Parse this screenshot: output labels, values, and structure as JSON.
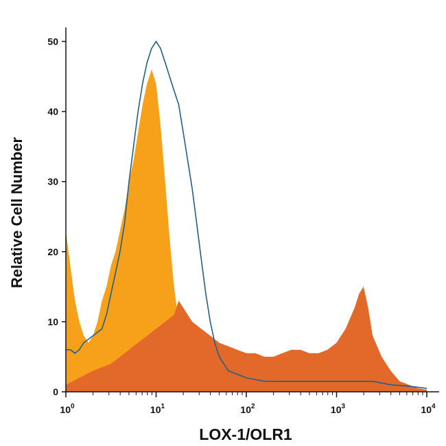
{
  "chart_data": {
    "type": "area",
    "title": "",
    "xlabel": "LOX-1/OLR1",
    "ylabel": "Relative Cell Number",
    "x_scale": "log10",
    "xlim": [
      1,
      10000
    ],
    "ylim": [
      0,
      52
    ],
    "grid": false,
    "legend": "none",
    "x_ticks": [
      {
        "value": 1,
        "base": "10",
        "exp": "0"
      },
      {
        "value": 10,
        "base": "10",
        "exp": "1"
      },
      {
        "value": 100,
        "base": "10",
        "exp": "2"
      },
      {
        "value": 1000,
        "base": "10",
        "exp": "3"
      },
      {
        "value": 10000,
        "base": "10",
        "exp": "4"
      }
    ],
    "y_ticks": [
      "0",
      "10",
      "20",
      "30",
      "40",
      "50"
    ],
    "series": [
      {
        "style": "filled",
        "color": "#f7a11a",
        "x": [
          1.0,
          1.12,
          1.26,
          1.41,
          1.58,
          1.78,
          2.0,
          2.24,
          2.51,
          2.82,
          3.16,
          3.55,
          3.98,
          4.47,
          5.01,
          5.62,
          6.31,
          7.08,
          7.94,
          8.91,
          10.0,
          11.2,
          12.6,
          14.1,
          15.8,
          17.8,
          20.0,
          22.4,
          25.1,
          28.2,
          31.6,
          35.5,
          39.8,
          50.1,
          63.1,
          100
        ],
        "y": [
          23,
          18,
          13,
          10,
          8,
          7,
          8,
          10,
          13,
          15,
          18,
          20,
          23,
          26,
          30,
          33,
          37,
          41,
          44,
          46,
          44,
          38,
          30,
          22,
          15,
          10,
          7,
          5,
          4,
          3,
          2,
          1.5,
          1,
          0.6,
          0.3,
          0
        ]
      },
      {
        "style": "filled",
        "color": "#e3692a",
        "x": [
          1.0,
          1.41,
          2.0,
          3.16,
          5.01,
          7.94,
          10.0,
          12.6,
          15.8,
          17.8,
          20.0,
          25.1,
          31.6,
          39.8,
          50.1,
          63.1,
          79.4,
          100,
          126,
          158,
          200,
          251,
          316,
          398,
          501,
          631,
          794,
          1000,
          1259,
          1585,
          1778,
          1995,
          2239,
          2512,
          3162,
          3981,
          5012,
          6310,
          7943,
          10000
        ],
        "y": [
          1,
          2,
          3,
          4,
          6,
          8,
          9,
          10,
          11,
          13,
          12,
          10,
          9,
          8,
          7,
          6.5,
          6,
          5.5,
          5.5,
          5,
          5,
          5.5,
          6,
          6,
          5.5,
          5.5,
          6,
          7,
          9,
          12,
          14,
          15,
          12,
          8,
          5,
          3,
          1.5,
          1,
          0.5,
          0.3
        ]
      },
      {
        "style": "outline",
        "color": "#1f5f8b",
        "x": [
          1.0,
          1.12,
          1.26,
          1.41,
          1.58,
          1.78,
          2.0,
          2.24,
          2.51,
          2.82,
          3.16,
          3.55,
          3.98,
          4.47,
          5.01,
          5.62,
          6.31,
          7.08,
          7.94,
          8.91,
          10.0,
          11.2,
          12.6,
          14.1,
          15.8,
          17.8,
          20.0,
          22.4,
          25.1,
          28.2,
          31.6,
          35.5,
          39.8,
          44.7,
          50.1,
          63.1,
          79.4,
          100,
          158,
          251,
          398,
          631,
          1000,
          1585,
          2512,
          3981,
          6310,
          10000
        ],
        "y": [
          6,
          6,
          5.5,
          6,
          7,
          7.5,
          8,
          8.5,
          9,
          11,
          14,
          17,
          20,
          24,
          30,
          35,
          40,
          44,
          47,
          49,
          50,
          49,
          47,
          45,
          43,
          41,
          37,
          33,
          29,
          24,
          19,
          14,
          10,
          7,
          5,
          3,
          2.5,
          2,
          1.5,
          1.5,
          1.5,
          1.5,
          1.5,
          1.5,
          1.5,
          1.0,
          0.8,
          0.5
        ]
      }
    ]
  }
}
